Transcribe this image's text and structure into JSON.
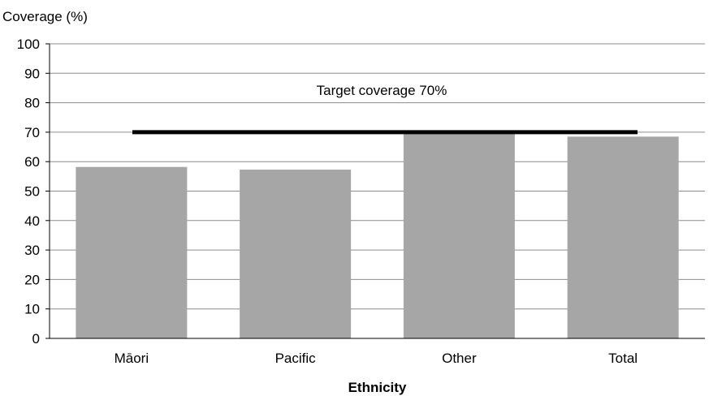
{
  "chart_data": {
    "type": "bar",
    "title": "",
    "ylabel": "Coverage (%)",
    "xlabel": "Ethnicity",
    "categories": [
      "Māori",
      "Pacific",
      "Other",
      "Total"
    ],
    "values": [
      58.2,
      57.3,
      69.8,
      68.5
    ],
    "ylim": [
      0,
      100
    ],
    "yticks": [
      "0",
      "10",
      "20",
      "30",
      "40",
      "50",
      "60",
      "70",
      "80",
      "90",
      "100"
    ],
    "grid": true,
    "bar_color": "#a6a6a6",
    "target": {
      "value": 70,
      "label": "Target coverage 70%",
      "color": "#000000"
    }
  }
}
